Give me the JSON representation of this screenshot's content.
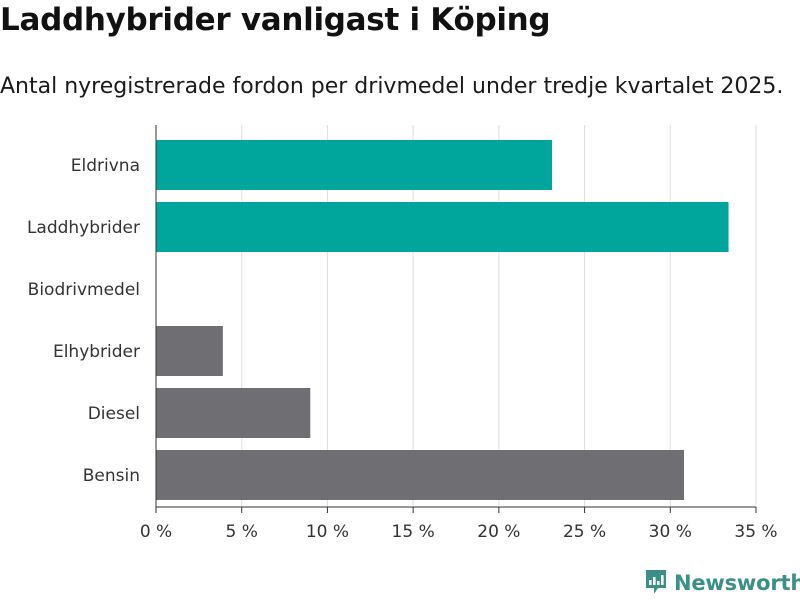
{
  "title": "Laddhybrider vanligast i Köping",
  "subtitle": "Antal nyregistrerade fordon per drivmedel under tredje kvartalet 2025.",
  "brand": {
    "name": "Newsworthy",
    "icon": "newsworthy-logo-icon"
  },
  "colors": {
    "highlight": "#00a59b",
    "default": "#6e6e73",
    "grid": "#dddddd",
    "axis": "#333333"
  },
  "chart_data": {
    "type": "bar",
    "orientation": "horizontal",
    "categories": [
      "Eldrivna",
      "Laddhybrider",
      "Biodrivmedel",
      "Elhybrider",
      "Diesel",
      "Bensin"
    ],
    "values": [
      23.1,
      33.4,
      0,
      3.9,
      9.0,
      30.8
    ],
    "highlighted": [
      true,
      true,
      false,
      false,
      false,
      false
    ],
    "xlim": [
      0,
      35
    ],
    "xticks": [
      0,
      5,
      10,
      15,
      20,
      25,
      30,
      35
    ],
    "tick_labels": [
      "0 %",
      "5 %",
      "10 %",
      "15 %",
      "20 %",
      "25 %",
      "30 %",
      "35 %"
    ],
    "grid": true,
    "legend": "none"
  }
}
